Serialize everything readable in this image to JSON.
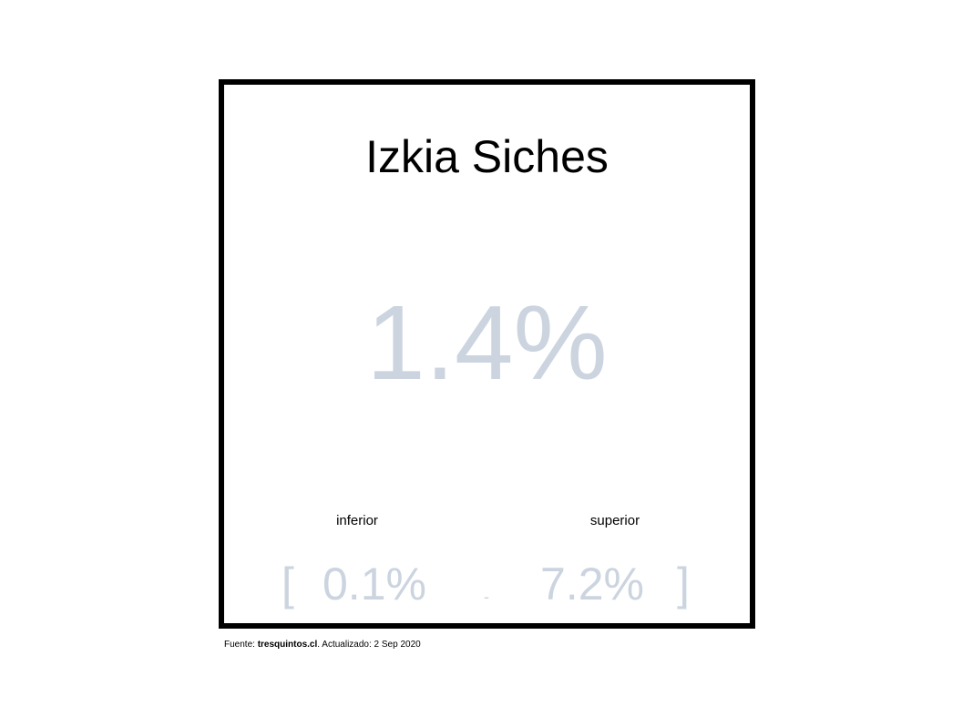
{
  "card": {
    "name": "Izkia Siches",
    "value": "1.4%",
    "lower_label": "inferior",
    "upper_label": "superior",
    "bracket_open": "[",
    "lower_value": "0.1%",
    "separator": "-",
    "upper_value": "7.2%",
    "bracket_close": "]",
    "value_color": "#cbd4df",
    "border_color": "#000000"
  },
  "footer": {
    "prefix": "Fuente: ",
    "source": "tresquintos.cl",
    "suffix": ". Actualizado: 2 Sep 2020"
  }
}
